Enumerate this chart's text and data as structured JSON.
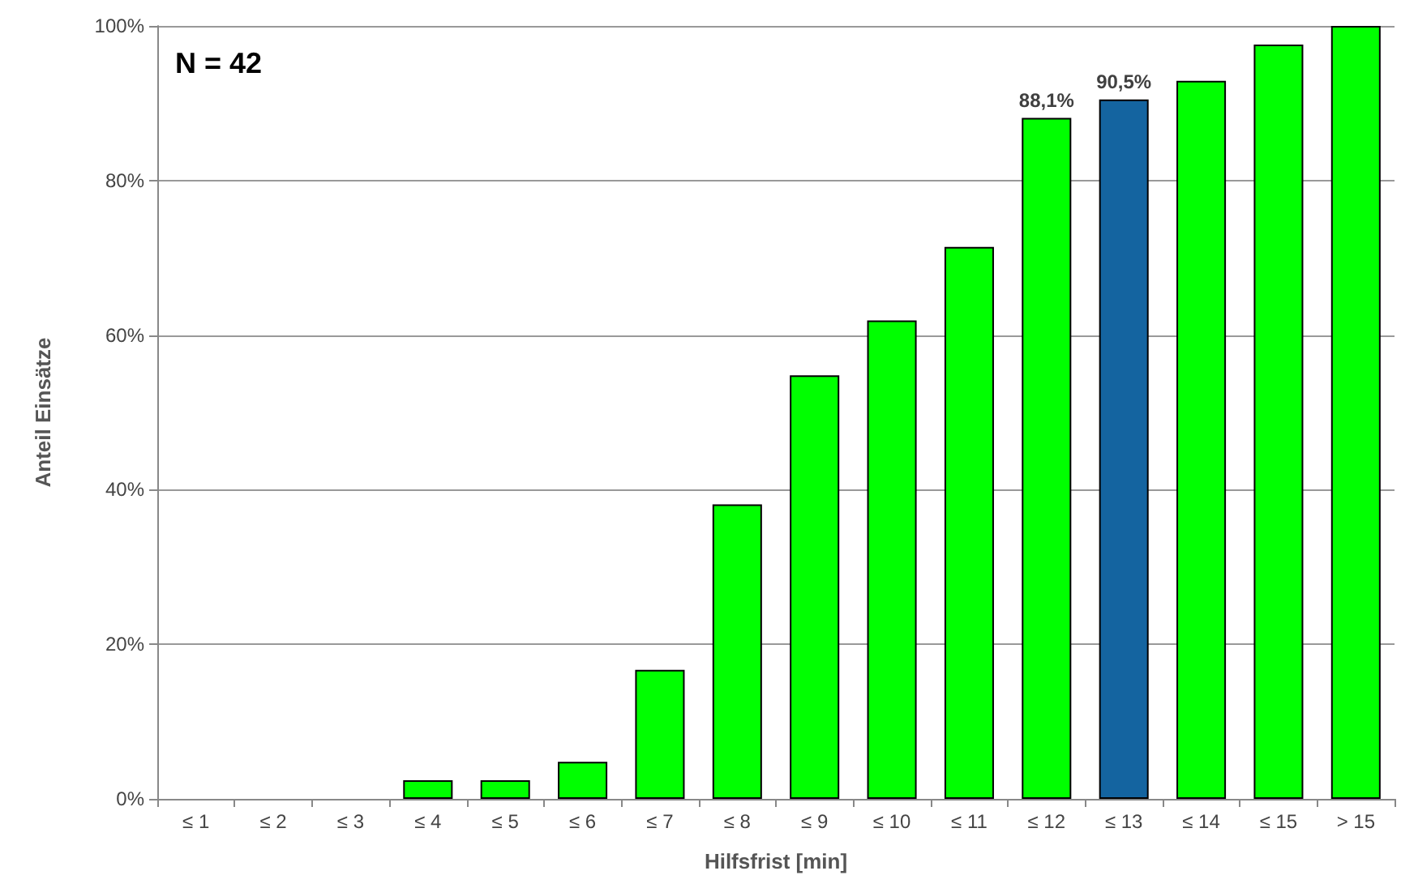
{
  "chart_data": {
    "type": "bar",
    "xlabel": "Hilfsfrist [min]",
    "ylabel": "Anteil Einsätze",
    "annotations": [
      "N = 42"
    ],
    "categories": [
      "≤ 1",
      "≤ 2",
      "≤ 3",
      "≤ 4",
      "≤ 5",
      "≤ 6",
      "≤ 7",
      "≤ 8",
      "≤ 9",
      "≤ 10",
      "≤ 11",
      "≤ 12",
      "≤ 13",
      "≤ 14",
      "≤ 15",
      "> 15"
    ],
    "values": [
      0,
      0,
      0,
      2.4,
      2.4,
      4.8,
      16.7,
      38.1,
      54.8,
      61.9,
      71.4,
      88.1,
      90.5,
      92.9,
      97.6,
      100
    ],
    "colors": [
      "#00ff00",
      "#00ff00",
      "#00ff00",
      "#00ff00",
      "#00ff00",
      "#00ff00",
      "#00ff00",
      "#00ff00",
      "#00ff00",
      "#00ff00",
      "#00ff00",
      "#00ff00",
      "#1464a0",
      "#00ff00",
      "#00ff00",
      "#00ff00"
    ],
    "value_labels": [
      null,
      null,
      null,
      null,
      null,
      null,
      null,
      null,
      null,
      null,
      null,
      "88,1%",
      "90,5%",
      null,
      null,
      null
    ],
    "ylim": [
      0,
      100
    ],
    "yticks": [
      {
        "value": 0,
        "label": "0%"
      },
      {
        "value": 20,
        "label": "20%"
      },
      {
        "value": 40,
        "label": "40%"
      },
      {
        "value": 60,
        "label": "60%"
      },
      {
        "value": 80,
        "label": "80%"
      },
      {
        "value": 100,
        "label": "100%"
      }
    ],
    "grid": "y"
  }
}
